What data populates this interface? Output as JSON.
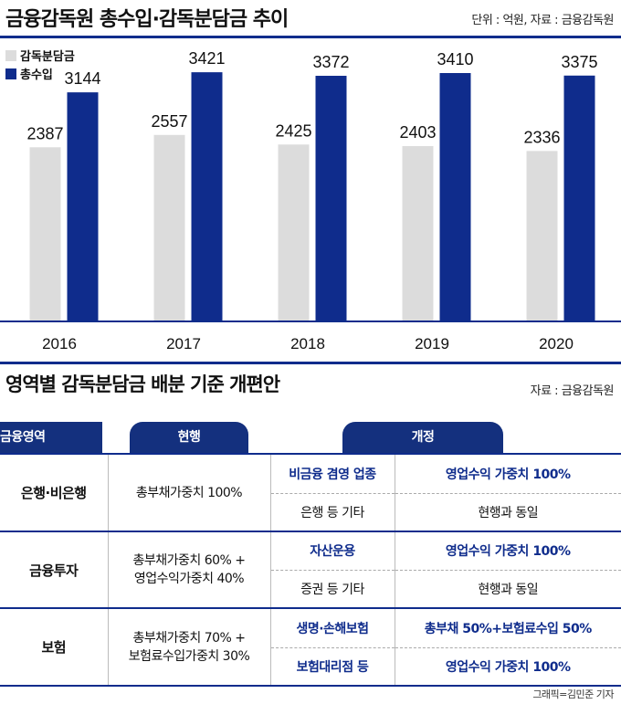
{
  "header": {
    "title": "금융감독원 총수입·감독분담금 추이",
    "unit_source": "단위 : 억원, 자료 : 금융감독원"
  },
  "chart_data": {
    "type": "bar",
    "categories": [
      "2016",
      "2017",
      "2018",
      "2019",
      "2020"
    ],
    "series": [
      {
        "name": "감독분담금",
        "values": [
          2387,
          2557,
          2425,
          2403,
          2336
        ],
        "color": "#dcdcdc"
      },
      {
        "name": "총수입",
        "values": [
          3144,
          3421,
          3372,
          3410,
          3375
        ],
        "color": "#0f2c8c"
      }
    ],
    "ylim": [
      0,
      3800
    ],
    "legend_position": "top-left",
    "grid": false
  },
  "section2": {
    "title": "영역별 감독분담금 배분 기준 개편안",
    "source": "자료 : 금융감독원"
  },
  "table": {
    "headers": {
      "area": "금융영역",
      "current": "현행",
      "revised": "개정"
    },
    "groups": [
      {
        "name": "은행·비은행",
        "current": "총부채가중치 100%",
        "rows": [
          {
            "sub": "비금융 겸영 업종",
            "rule": "영업수익 가중치 100%",
            "highlight": true
          },
          {
            "sub": "은행 등 기타",
            "rule": "현행과 동일",
            "highlight": false
          }
        ]
      },
      {
        "name": "금융투자",
        "current": "총부채가중치 60% +\n영업수익가중치 40%",
        "rows": [
          {
            "sub": "자산운용",
            "rule": "영업수익 가중치 100%",
            "highlight": true
          },
          {
            "sub": "증권 등 기타",
            "rule": "현행과 동일",
            "highlight": false
          }
        ]
      },
      {
        "name": "보험",
        "current": "총부채가중치 70% +\n보험료수입가중치 30%",
        "rows": [
          {
            "sub": "생명·손해보험",
            "rule": "총부채 50%+보험료수입 50%",
            "highlight": true
          },
          {
            "sub": "보험대리점 등",
            "rule": "영업수익 가중치 100%",
            "highlight": true
          }
        ]
      }
    ]
  },
  "credit": "그래픽=김민준 기자"
}
